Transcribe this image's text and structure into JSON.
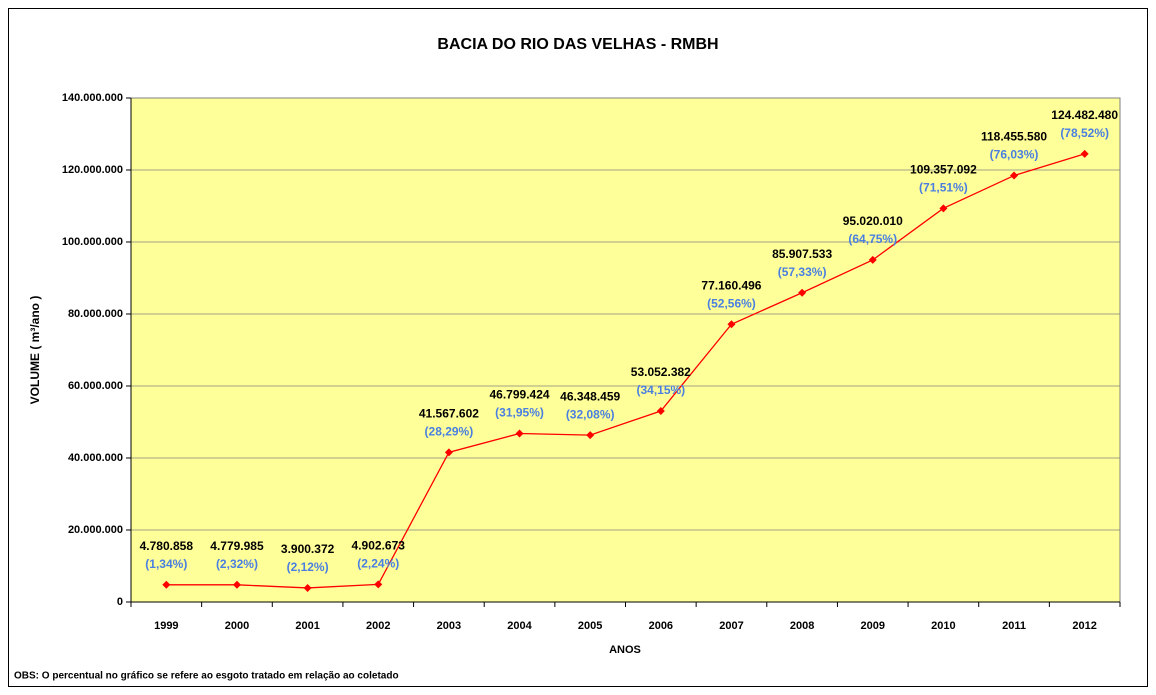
{
  "chart_data": {
    "type": "line",
    "title": "BACIA DO RIO DAS VELHAS - RMBH",
    "y_label": "VOLUME ( m³/ano )",
    "x_label": "ANOS",
    "note": "OBS: O percentual no gráfico se refere ao esgoto tratado em relação ao coletado",
    "categories": [
      "1999",
      "2000",
      "2001",
      "2002",
      "2003",
      "2004",
      "2005",
      "2006",
      "2007",
      "2008",
      "2009",
      "2010",
      "2011",
      "2012"
    ],
    "values": [
      4780858,
      4779985,
      3900372,
      4902673,
      41567602,
      46799424,
      46348459,
      53052382,
      77160496,
      85907533,
      95020010,
      109357092,
      118455580,
      124482480
    ],
    "value_labels": [
      "4.780.858",
      "4.779.985",
      "3.900.372",
      "4.902.673",
      "41.567.602",
      "46.799.424",
      "46.348.459",
      "53.052.382",
      "77.160.496",
      "85.907.533",
      "95.020.010",
      "109.357.092",
      "118.455.580",
      "124.482.480"
    ],
    "percent_labels": [
      "(1,34%)",
      "(2,32%)",
      "(2,12%)",
      "(2,24%)",
      "(28,29%)",
      "(31,95%)",
      "(32,08%)",
      "(34,15%)",
      "(52,56%)",
      "(57,33%)",
      "(64,75%)",
      "(71,51%)",
      "(76,03%)",
      "(78,52%)"
    ],
    "color": "#ff0000",
    "percent_color": "#4a7fe0",
    "ylim": [
      0,
      140000000
    ],
    "yticks": [
      0,
      {
        "value": 20000000,
        "label": "20.000.000"
      },
      {
        "value": 40000000,
        "label": "40.000.000"
      },
      {
        "value": 60000000,
        "label": "60.000.000"
      },
      {
        "value": 80000000,
        "label": "80.000.000"
      },
      {
        "value": 100000000,
        "label": "100.000.000"
      },
      {
        "value": 120000000,
        "label": "120.000.000"
      },
      {
        "value": 140000000,
        "label": "140.000.000"
      }
    ],
    "grid": true
  }
}
